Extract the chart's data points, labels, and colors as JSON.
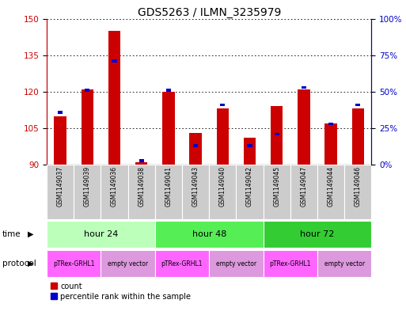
{
  "title": "GDS5263 / ILMN_3235979",
  "samples": [
    "GSM1149037",
    "GSM1149039",
    "GSM1149036",
    "GSM1149038",
    "GSM1149041",
    "GSM1149043",
    "GSM1149040",
    "GSM1149042",
    "GSM1149045",
    "GSM1149047",
    "GSM1149044",
    "GSM1149046"
  ],
  "count_values": [
    110,
    121,
    145,
    91,
    120,
    103,
    113,
    101,
    114,
    121,
    107,
    113
  ],
  "percentile_values": [
    35,
    50,
    70,
    2,
    50,
    12,
    40,
    12,
    20,
    52,
    27,
    40
  ],
  "ylim_left": [
    90,
    150
  ],
  "ylim_right": [
    0,
    100
  ],
  "yticks_left": [
    90,
    105,
    120,
    135,
    150
  ],
  "yticks_right": [
    0,
    25,
    50,
    75,
    100
  ],
  "ytick_labels_right": [
    "0%",
    "25%",
    "50%",
    "75%",
    "100%"
  ],
  "time_groups": [
    {
      "label": "hour 24",
      "span": [
        0,
        4
      ],
      "color": "#bbffbb"
    },
    {
      "label": "hour 48",
      "span": [
        4,
        8
      ],
      "color": "#55ee55"
    },
    {
      "label": "hour 72",
      "span": [
        8,
        12
      ],
      "color": "#33cc33"
    }
  ],
  "protocol_groups": [
    {
      "label": "pTRex-GRHL1",
      "span": [
        0,
        2
      ],
      "color": "#ff66ff"
    },
    {
      "label": "empty vector",
      "span": [
        2,
        4
      ],
      "color": "#dd99dd"
    },
    {
      "label": "pTRex-GRHL1",
      "span": [
        4,
        6
      ],
      "color": "#ff66ff"
    },
    {
      "label": "empty vector",
      "span": [
        6,
        8
      ],
      "color": "#dd99dd"
    },
    {
      "label": "pTRex-GRHL1",
      "span": [
        8,
        10
      ],
      "color": "#ff66ff"
    },
    {
      "label": "empty vector",
      "span": [
        10,
        12
      ],
      "color": "#dd99dd"
    }
  ],
  "bar_color_red": "#cc0000",
  "bar_color_blue": "#0000cc",
  "left_axis_color": "#cc0000",
  "right_axis_color": "#0000cc",
  "background_color": "#ffffff",
  "sample_bg_color": "#cccccc",
  "title_fontsize": 10
}
